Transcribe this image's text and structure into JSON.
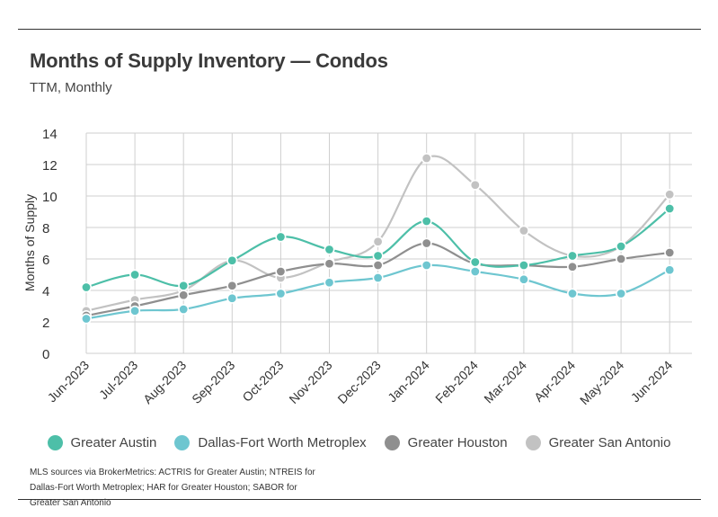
{
  "header": {
    "title": "Months of Supply Inventory — Condos",
    "subtitle": "TTM, Monthly"
  },
  "source_note": "MLS sources via BrokerMetrics: ACTRIS for Greater Austin; NTREIS for Dallas-Fort Worth Metroplex; HAR for Greater Houston; SABOR for Greater San Antonio",
  "chart_data": {
    "type": "line",
    "title": "Months of Supply Inventory — Condos",
    "subtitle": "TTM, Monthly",
    "xlabel": "",
    "ylabel": "Months of Supply",
    "ylim": [
      0,
      14
    ],
    "yticks": [
      0,
      2,
      4,
      6,
      8,
      10,
      12,
      14
    ],
    "grid": true,
    "legend_position": "bottom",
    "categories": [
      "Jun-2023",
      "Jul-2023",
      "Aug-2023",
      "Sep-2023",
      "Oct-2023",
      "Nov-2023",
      "Dec-2023",
      "Jan-2024",
      "Feb-2024",
      "Mar-2024",
      "Apr-2024",
      "May-2024",
      "Jun-2024"
    ],
    "series": [
      {
        "name": "Greater Austin",
        "color": "#4dbfa8",
        "values": [
          4.2,
          5.0,
          4.3,
          5.9,
          7.4,
          6.6,
          6.2,
          8.4,
          5.8,
          5.6,
          6.2,
          6.8,
          9.2
        ]
      },
      {
        "name": "Dallas-Fort Worth Metroplex",
        "color": "#6ec6d0",
        "values": [
          2.2,
          2.7,
          2.8,
          3.5,
          3.8,
          4.5,
          4.8,
          5.6,
          5.2,
          4.7,
          3.8,
          3.8,
          5.3
        ]
      },
      {
        "name": "Greater Houston",
        "color": "#8f8f8f",
        "values": [
          2.4,
          3.0,
          3.7,
          4.3,
          5.2,
          5.7,
          5.6,
          7.0,
          5.7,
          5.6,
          5.5,
          6.0,
          6.4
        ]
      },
      {
        "name": "Greater San Antonio",
        "color": "#c2c2c2",
        "values": [
          2.7,
          3.4,
          4.0,
          5.9,
          4.8,
          5.8,
          7.1,
          12.4,
          10.7,
          7.8,
          6.2,
          6.8,
          10.1
        ]
      }
    ]
  }
}
